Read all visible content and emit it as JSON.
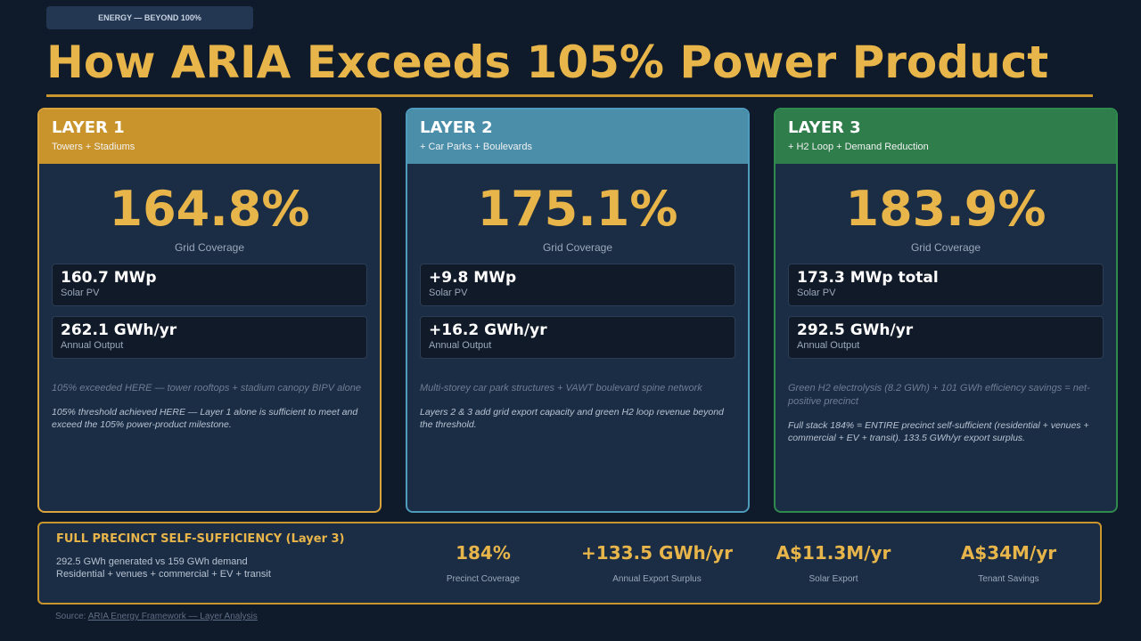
{
  "tag": "ENERGY — BEYOND 100%",
  "title": "How ARIA Exceeds 105% Power Product",
  "layers": [
    {
      "heading": "LAYER 1",
      "subtitle": "Towers + Stadiums",
      "coverage": "164.8%",
      "coverage_label": "Grid Coverage",
      "pv_value": "160.7 MWp",
      "pv_label": "Solar PV",
      "output_value": "262.1 GWh/yr",
      "output_label": "Annual Output",
      "note": "105% exceeded HERE — tower rooftops + stadium canopy BIPV alone",
      "detail": "105% threshold achieved HERE — Layer 1 alone is sufficient to meet and exceed the 105% power-product milestone."
    },
    {
      "heading": "LAYER 2",
      "subtitle": "+ Car Parks + Boulevards",
      "coverage": "175.1%",
      "coverage_label": "Grid Coverage",
      "pv_value": "+9.8 MWp",
      "pv_label": "Solar PV",
      "output_value": "+16.2 GWh/yr",
      "output_label": "Annual Output",
      "note": "Multi-storey car park structures + VAWT boulevard spine network",
      "detail": "Layers 2 & 3 add grid export capacity and green H2 loop revenue beyond the threshold."
    },
    {
      "heading": "LAYER 3",
      "subtitle": "+ H2 Loop + Demand Reduction",
      "coverage": "183.9%",
      "coverage_label": "Grid Coverage",
      "pv_value": "173.3 MWp total",
      "pv_label": "Solar PV",
      "output_value": "292.5 GWh/yr",
      "output_label": "Annual Output",
      "note": "Green H2 electrolysis (8.2 GWh) + 101 GWh efficiency savings = net-positive precinct",
      "detail": "Full stack 184% = ENTIRE precinct self-sufficient (residential + venues + commercial + EV + transit). 133.5 GWh/yr export surplus."
    }
  ],
  "summary": {
    "title": "FULL PRECINCT SELF-SUFFICIENCY (Layer 3)",
    "line1": "292.5 GWh generated vs 159 GWh demand",
    "line2": "Residential + venues + commercial + EV + transit",
    "metrics": [
      {
        "value": "184%",
        "label": "Precinct Coverage"
      },
      {
        "value": "+133.5 GWh/yr",
        "label": "Annual Export Surplus"
      },
      {
        "value": "A$11.3M/yr",
        "label": "Solar Export"
      },
      {
        "value": "A$34M/yr",
        "label": "Tenant Savings"
      }
    ]
  },
  "source": {
    "prefix": "Source: ",
    "link": "ARIA Energy Framework — Layer Analysis"
  }
}
